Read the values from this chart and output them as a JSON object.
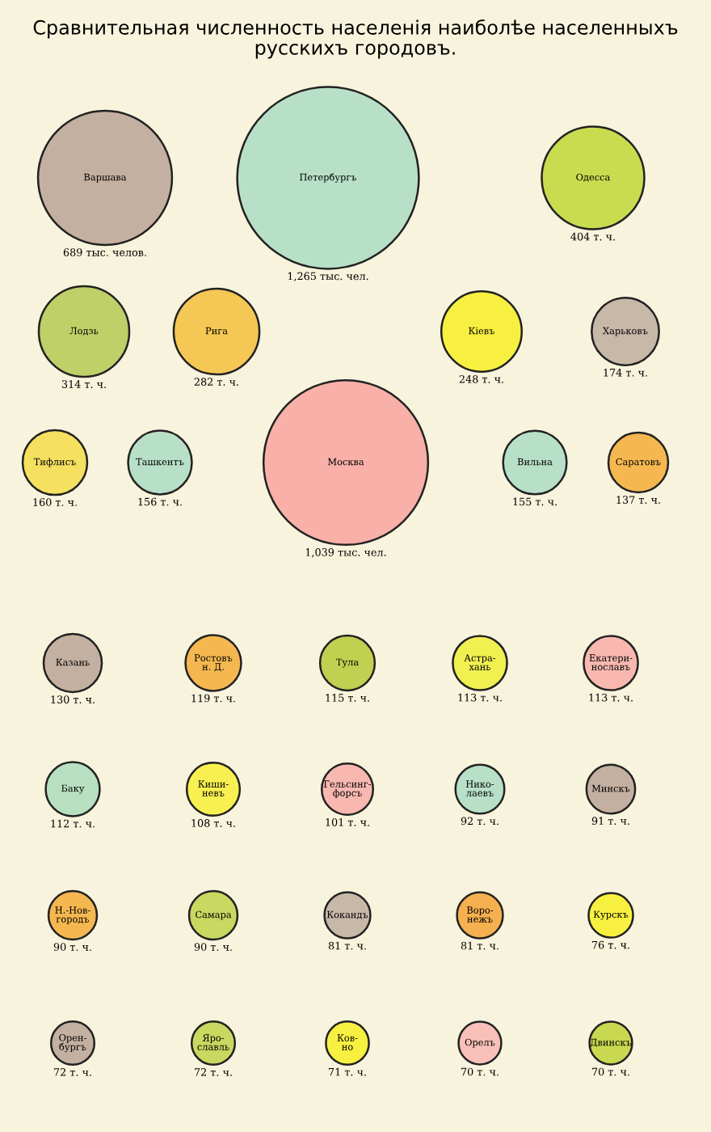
{
  "chart_data": {
    "type": "other",
    "title": "Сравнительная численность населенія наиболѣе населенныхъ\nрусскихъ городовъ.",
    "categories": [
      "Варшава",
      "Петербургъ",
      "Одесса",
      "Лодзь",
      "Рига",
      "Кіевъ",
      "Харьковъ",
      "Тифлисъ",
      "Ташкентъ",
      "Москва",
      "Вильна",
      "Саратовъ",
      "Казань",
      "Ростовъ\nн. Д.",
      "Тула",
      "Астра-\nхань",
      "Екатери-\nнославъ",
      "Баку",
      "Киши-\nневъ",
      "Гельсинг-\nфорсъ",
      "Нико-\nлаевъ",
      "Минскъ",
      "Н.-Нов-\nгородъ",
      "Самара",
      "Кокандъ",
      "Воро-\nнежъ",
      "Курскъ",
      "Орен-\nбургъ",
      "Яро-\nславль",
      "Ков-\nно",
      "Орелъ",
      "Двинскъ"
    ],
    "values": [
      689,
      1265,
      404,
      314,
      282,
      248,
      174,
      160,
      156,
      1039,
      155,
      137,
      130,
      119,
      115,
      113,
      113,
      112,
      108,
      101,
      92,
      91,
      90,
      90,
      81,
      81,
      76,
      72,
      72,
      71,
      70,
      70
    ],
    "value_labels": [
      "689 тыс. челов.",
      "1,265 тыс. чел.",
      "404 т. ч.",
      "314 т. ч.",
      "282 т. ч.",
      "248 т. ч.",
      "174 т. ч.",
      "160 т. ч.",
      "156 т. ч.",
      "1,039 тыс. чел.",
      "155 т. ч.",
      "137 т. ч.",
      "130 т. ч.",
      "119 т. ч.",
      "115 т. ч.",
      "113 т. ч.",
      "113 т. ч.",
      "112 т. ч.",
      "108 т. ч.",
      "101 т. ч.",
      "92 т. ч.",
      "91 т. ч.",
      "90 т. ч.",
      "90 т. ч.",
      "81 т. ч.",
      "81 т. ч.",
      "76 т. ч.",
      "72 т. ч.",
      "72 т. ч.",
      "71 т. ч.",
      "70 т. ч.",
      "70 т. ч."
    ],
    "colors": [
      "#c4b0a0",
      "#b8e0c8",
      "#c8dc50",
      "#c0d068",
      "#f5c855",
      "#f8f040",
      "#c8b8a8",
      "#f5e060",
      "#b8e0c8",
      "#f8b0a8",
      "#b8e0c8",
      "#f5b850",
      "#c4b0a0",
      "#f5b850",
      "#c0d050",
      "#f0f050",
      "#f8b8b0",
      "#b8e0c0",
      "#f8f050",
      "#f8b8b0",
      "#b8e0c8",
      "#c4b0a0",
      "#f5b850",
      "#c8d860",
      "#c8b8a8",
      "#f5b050",
      "#f8f040",
      "#c4b0a0",
      "#c8d860",
      "#f8f040",
      "#f8c0b8",
      "#c8d850"
    ]
  }
}
